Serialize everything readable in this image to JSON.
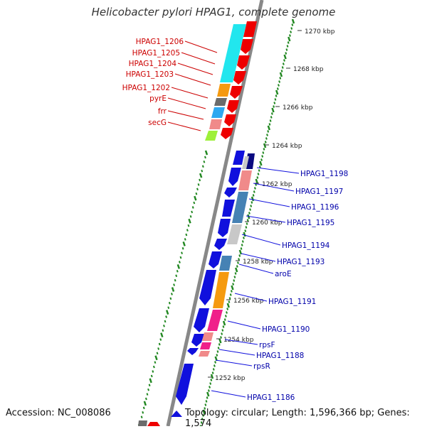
{
  "title": "Helicobacter pylori HPAG1, complete genome",
  "footer": {
    "accession": "Accession: NC_008086",
    "summary": "Topology: circular; Length: 1,596,366 bp; Genes: 1,574"
  },
  "colors": {
    "forward_gene": "#1010dd",
    "reverse_gene": "#ee0000",
    "forward_label": "#0000aa",
    "reverse_label": "#cc0000",
    "backbone": "#888888",
    "tick": "#228822"
  },
  "scale_labels": [
    "1270 kbp",
    "1268 kbp",
    "1266 kbp",
    "1264 kbp",
    "1262 kbp",
    "1260 kbp",
    "1258 kbp",
    "1256 kbp",
    "1254 kbp",
    "1252 kbp"
  ],
  "reverse_genes": [
    "HPAG1_1206",
    "HPAG1_1205",
    "HPAG1_1204",
    "HPAG1_1203",
    "HPAG1_1202",
    "pyrE",
    "frr",
    "secG"
  ],
  "forward_genes": [
    "HPAG1_1198",
    "HPAG1_1197",
    "HPAG1_1196",
    "HPAG1_1195",
    "HPAG1_1194",
    "HPAG1_1193",
    "aroE",
    "HPAG1_1191",
    "HPAG1_1190",
    "rpsF",
    "HPAG1_1188",
    "rpsR",
    "HPAG1_1186"
  ]
}
